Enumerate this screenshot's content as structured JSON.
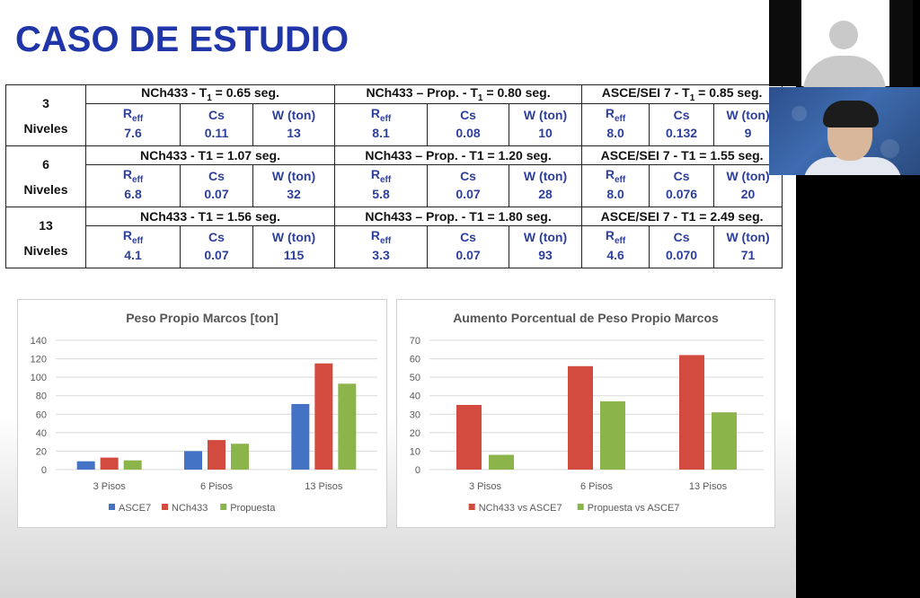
{
  "slide": {
    "title": "CASO DE ESTUDIO"
  },
  "table": {
    "rows": [
      {
        "level_num": "3",
        "level_word": "Niveles",
        "groups": [
          {
            "header_pre": "NCh433 - T",
            "header_sub": "1",
            "header_post": " = 0.65 seg.",
            "reff": "7.6",
            "cs": "0.11",
            "w": "13"
          },
          {
            "header_pre": "NCh433 – Prop.  - T",
            "header_sub": "1",
            "header_post": " = 0.80 seg.",
            "reff": "8.1",
            "cs": "0.08",
            "w": "10"
          },
          {
            "header_pre": "ASCE/SEI 7 - T",
            "header_sub": "1",
            "header_post": " = 0.85 seg.",
            "reff": "8.0",
            "cs": "0.132",
            "w": "9"
          }
        ]
      },
      {
        "level_num": "6",
        "level_word": "Niveles",
        "groups": [
          {
            "header_pre": "NCh433 - T1 = 1.07 seg.",
            "header_sub": "",
            "header_post": "",
            "reff": "6.8",
            "cs": "0.07",
            "w": "32"
          },
          {
            "header_pre": "NCh433 – Prop.  - T1 = 1.20 seg.",
            "header_sub": "",
            "header_post": "",
            "reff": "5.8",
            "cs": "0.07",
            "w": "28"
          },
          {
            "header_pre": "ASCE/SEI 7 - T1 = 1.55 seg.",
            "header_sub": "",
            "header_post": "",
            "reff": "8.0",
            "cs": "0.076",
            "w": "20"
          }
        ]
      },
      {
        "level_num": "13",
        "level_word": "Niveles",
        "groups": [
          {
            "header_pre": "NCh433 - T1 = 1.56 seg.",
            "header_sub": "",
            "header_post": "",
            "reff": "4.1",
            "cs": "0.07",
            "w": "115"
          },
          {
            "header_pre": "NCh433 – Prop.  - T1 = 1.80 seg.",
            "header_sub": "",
            "header_post": "",
            "reff": "3.3",
            "cs": "0.07",
            "w": "93"
          },
          {
            "header_pre": "ASCE/SEI 7 - T1 = 2.49 seg.",
            "header_sub": "",
            "header_post": "",
            "reff": "4.6",
            "cs": "0.070",
            "w": "71"
          }
        ]
      }
    ],
    "col_reff": "R",
    "col_reff_sub": "eff",
    "col_cs": "Cs",
    "col_w": "W (ton)"
  },
  "chart_data": [
    {
      "type": "bar",
      "title": "Peso Propio Marcos [ton]",
      "categories": [
        "3 Pisos",
        "6 Pisos",
        "13 Pisos"
      ],
      "series": [
        {
          "name": "ASCE7",
          "values": [
            9,
            20,
            71
          ],
          "color": "#4472c4"
        },
        {
          "name": "NCh433",
          "values": [
            13,
            32,
            115
          ],
          "color": "#d24b3e"
        },
        {
          "name": "Propuesta",
          "values": [
            10,
            28,
            93
          ],
          "color": "#8bb54b"
        }
      ],
      "ylim": [
        0,
        140
      ],
      "yticks": [
        0,
        20,
        40,
        60,
        80,
        100,
        120,
        140
      ],
      "grid": true,
      "legend": "bottom"
    },
    {
      "type": "bar",
      "title": "Aumento Porcentual de Peso Propio Marcos",
      "categories": [
        "3 Pisos",
        "6 Pisos",
        "13 Pisos"
      ],
      "series": [
        {
          "name": "NCh433 vs ASCE7",
          "values": [
            35,
            56,
            62
          ],
          "color": "#d24b3e"
        },
        {
          "name": "Propuesta vs ASCE7",
          "values": [
            8,
            37,
            31
          ],
          "color": "#8bb54b"
        }
      ],
      "ylim": [
        0,
        70
      ],
      "yticks": [
        0,
        10,
        20,
        30,
        40,
        50,
        60,
        70
      ],
      "grid": true,
      "legend": "bottom"
    }
  ]
}
